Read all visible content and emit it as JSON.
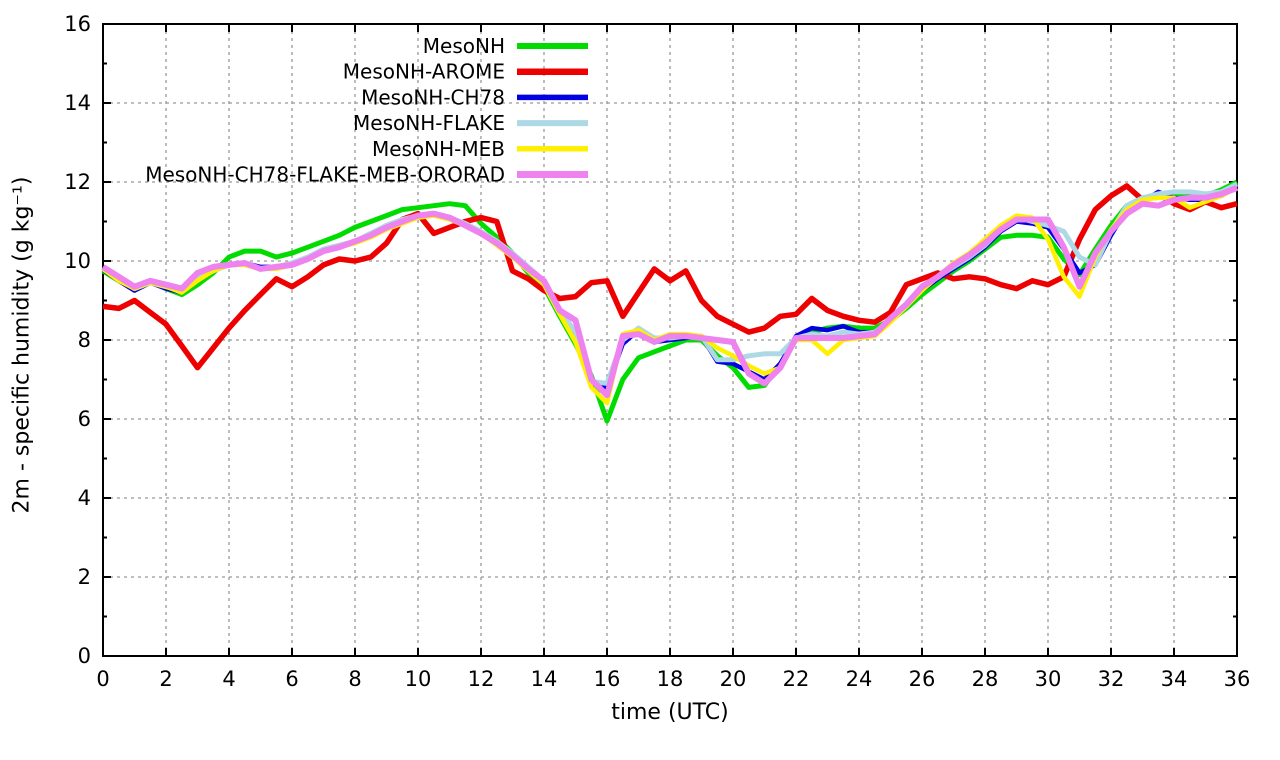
{
  "chart_data": {
    "type": "line",
    "title": "",
    "xlabel": "time (UTC)",
    "ylabel": "2m - specific humidity (g kg⁻¹)",
    "xlim": [
      0,
      36
    ],
    "ylim": [
      0,
      16
    ],
    "xticks": [
      0,
      2,
      4,
      6,
      8,
      10,
      12,
      14,
      16,
      18,
      20,
      22,
      24,
      26,
      28,
      30,
      32,
      34,
      36
    ],
    "yticks": [
      0,
      2,
      4,
      6,
      8,
      10,
      12,
      14,
      16
    ],
    "y_minor_ticks": 1,
    "grid": true,
    "legend_position": "top-center",
    "x_start": 0,
    "x_step": 0.5,
    "series": [
      {
        "name": "MesoNH",
        "color": "#00dc00",
        "width": 5,
        "values": [
          9.75,
          9.5,
          9.3,
          9.5,
          9.3,
          9.15,
          9.4,
          9.7,
          10.1,
          10.25,
          10.25,
          10.1,
          10.2,
          10.35,
          10.5,
          10.65,
          10.85,
          11.0,
          11.15,
          11.3,
          11.35,
          11.4,
          11.45,
          11.4,
          10.95,
          10.6,
          10.2,
          9.7,
          9.35,
          8.6,
          7.9,
          7.1,
          5.95,
          7.0,
          7.55,
          7.7,
          7.85,
          8.0,
          8.0,
          7.6,
          7.3,
          6.8,
          6.85,
          7.4,
          8.0,
          8.2,
          8.3,
          8.35,
          8.3,
          8.3,
          8.5,
          8.8,
          9.15,
          9.45,
          9.75,
          10.0,
          10.3,
          10.6,
          10.65,
          10.65,
          10.6,
          10.05,
          9.65,
          10.3,
          10.9,
          11.4,
          11.6,
          11.65,
          11.7,
          11.65,
          11.65,
          11.8,
          12.0
        ]
      },
      {
        "name": "MesoNH-AROME",
        "color": "#ee0000",
        "width": 5.5,
        "values": [
          8.85,
          8.8,
          9.0,
          8.7,
          8.4,
          7.85,
          7.3,
          7.8,
          8.3,
          8.75,
          9.15,
          9.55,
          9.35,
          9.6,
          9.9,
          10.05,
          10.0,
          10.1,
          10.45,
          11.05,
          11.2,
          10.7,
          10.85,
          11.0,
          11.1,
          11.0,
          9.75,
          9.55,
          9.25,
          9.05,
          9.1,
          9.45,
          9.5,
          8.6,
          9.2,
          9.8,
          9.5,
          9.75,
          9.0,
          8.6,
          8.4,
          8.2,
          8.3,
          8.6,
          8.65,
          9.05,
          8.75,
          8.6,
          8.5,
          8.45,
          8.7,
          9.4,
          9.55,
          9.7,
          9.55,
          9.6,
          9.55,
          9.4,
          9.3,
          9.5,
          9.4,
          9.6,
          10.55,
          11.3,
          11.65,
          11.9,
          11.55,
          11.7,
          11.45,
          11.3,
          11.5,
          11.35,
          11.45
        ]
      },
      {
        "name": "MesoNH-CH78",
        "color": "#0000e0",
        "width": 4.5,
        "values": [
          9.78,
          9.5,
          9.25,
          9.45,
          9.3,
          9.2,
          9.5,
          9.75,
          9.9,
          9.95,
          9.85,
          9.85,
          9.9,
          10.1,
          10.25,
          10.35,
          10.5,
          10.65,
          10.85,
          11.0,
          11.15,
          11.15,
          11.1,
          10.9,
          10.7,
          10.45,
          10.1,
          9.8,
          9.45,
          8.7,
          8.05,
          6.9,
          6.8,
          7.9,
          8.25,
          7.95,
          8.0,
          8.05,
          8.1,
          7.45,
          7.4,
          7.2,
          7.0,
          7.4,
          8.1,
          8.3,
          8.25,
          8.35,
          8.2,
          8.2,
          8.5,
          8.85,
          9.25,
          9.55,
          9.8,
          10.05,
          10.35,
          10.75,
          11.0,
          10.95,
          10.85,
          10.3,
          9.7,
          9.9,
          10.65,
          11.3,
          11.5,
          11.75,
          11.6,
          11.55,
          11.55,
          11.65,
          11.9
        ]
      },
      {
        "name": "MesoNH-FLAKE",
        "color": "#add8e6",
        "width": 5,
        "values": [
          9.8,
          9.55,
          9.3,
          9.45,
          9.35,
          9.25,
          9.55,
          9.75,
          9.9,
          9.95,
          9.8,
          9.85,
          9.95,
          10.1,
          10.3,
          10.4,
          10.5,
          10.7,
          10.9,
          11.05,
          11.15,
          11.2,
          11.1,
          10.95,
          10.75,
          10.5,
          10.2,
          9.85,
          9.5,
          8.75,
          8.2,
          6.95,
          6.9,
          8.0,
          8.3,
          8.05,
          8.05,
          8.1,
          8.1,
          7.5,
          7.5,
          7.6,
          7.65,
          7.65,
          8.05,
          8.15,
          8.1,
          8.2,
          8.15,
          8.2,
          8.5,
          8.85,
          9.3,
          9.6,
          9.85,
          10.1,
          10.4,
          10.8,
          11.1,
          11.0,
          10.9,
          10.75,
          10.1,
          9.9,
          10.75,
          11.4,
          11.6,
          11.7,
          11.75,
          11.75,
          11.7,
          11.75,
          11.95
        ]
      },
      {
        "name": "MesoNH-MEB",
        "color": "#fff000",
        "width": 4.5,
        "values": [
          9.8,
          9.5,
          9.3,
          9.45,
          9.35,
          9.2,
          9.5,
          9.75,
          9.9,
          9.9,
          9.8,
          9.8,
          9.9,
          10.05,
          10.25,
          10.35,
          10.45,
          10.6,
          10.8,
          10.95,
          11.1,
          11.15,
          11.05,
          10.9,
          10.7,
          10.4,
          10.1,
          9.75,
          9.4,
          8.65,
          7.95,
          6.8,
          6.4,
          8.15,
          8.25,
          8.0,
          8.15,
          8.15,
          8.1,
          7.8,
          7.6,
          7.35,
          7.15,
          7.3,
          8.0,
          8.0,
          7.65,
          8.0,
          8.05,
          8.1,
          8.45,
          8.85,
          9.25,
          9.6,
          9.95,
          10.2,
          10.55,
          10.9,
          11.15,
          11.1,
          10.55,
          9.6,
          9.1,
          10.1,
          10.8,
          11.3,
          11.55,
          11.6,
          11.6,
          11.35,
          11.5,
          11.65,
          11.85
        ]
      },
      {
        "name": "MesoNH-CH78-FLAKE-MEB-ORORAD",
        "color": "#ee82ee",
        "width": 6,
        "values": [
          9.85,
          9.6,
          9.35,
          9.5,
          9.4,
          9.3,
          9.7,
          9.85,
          9.9,
          9.95,
          9.8,
          9.85,
          9.9,
          10.05,
          10.25,
          10.35,
          10.5,
          10.65,
          10.85,
          11.0,
          11.15,
          11.2,
          11.1,
          10.9,
          10.7,
          10.45,
          10.15,
          9.8,
          9.5,
          8.75,
          8.5,
          7.0,
          6.6,
          8.1,
          8.15,
          7.95,
          8.1,
          8.1,
          8.05,
          8.0,
          7.95,
          7.15,
          6.9,
          7.3,
          8.05,
          8.05,
          8.05,
          8.05,
          8.1,
          8.15,
          8.55,
          8.9,
          9.35,
          9.6,
          9.9,
          10.15,
          10.45,
          10.8,
          11.05,
          11.05,
          11.05,
          10.35,
          9.35,
          10.2,
          10.75,
          11.2,
          11.45,
          11.4,
          11.55,
          11.6,
          11.6,
          11.7,
          11.85
        ]
      }
    ]
  },
  "colors": {
    "background": "#ffffff",
    "axis": "#000000",
    "grid": "#999999",
    "text": "#000000"
  }
}
